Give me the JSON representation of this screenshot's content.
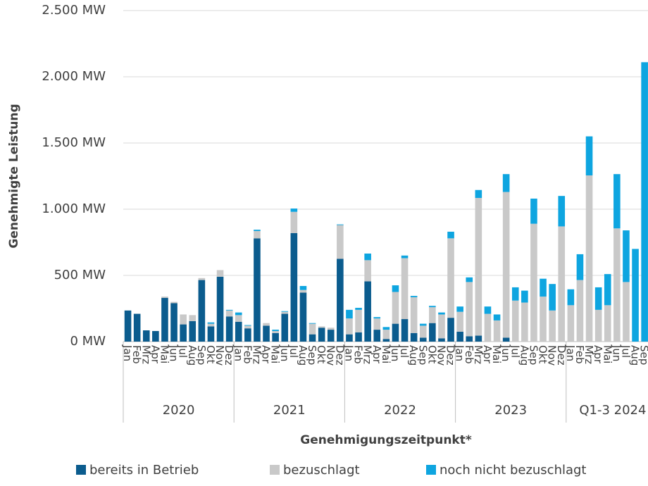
{
  "chart_data": {
    "type": "stacked_bar",
    "y_label": "Genehmigte Leistung",
    "x_label": "Genehmigungszeitpunkt*",
    "groups": [
      {
        "label": "2020",
        "categories": [
          "Jan",
          "Feb",
          "Mrz",
          "Apr",
          "Mai",
          "Jun",
          "Jul",
          "Aug",
          "Sep",
          "Okt",
          "Nov",
          "Dez"
        ]
      },
      {
        "label": "2021",
        "categories": [
          "Jan",
          "Feb",
          "Mrz",
          "Apr",
          "Mai",
          "Jun",
          "Jul",
          "Aug",
          "Sep",
          "Okt",
          "Nov",
          "Dez"
        ]
      },
      {
        "label": "2022",
        "categories": [
          "Jan",
          "Feb",
          "Mrz",
          "Apr",
          "Mai",
          "Jun",
          "Jul",
          "Aug",
          "Sep",
          "Okt",
          "Nov",
          "Dez"
        ]
      },
      {
        "label": "2023",
        "categories": [
          "Jan",
          "Feb",
          "Mrz",
          "Apr",
          "Mai",
          "Jun",
          "Jul",
          "Aug",
          "Sep",
          "Okt",
          "Nov",
          "Dez"
        ]
      },
      {
        "label": "Q1-3 2024",
        "categories": [
          "Jan",
          "Feb",
          "Mrz",
          "Apr",
          "Mai",
          "Jun",
          "Jul",
          "Aug",
          "Sep"
        ]
      }
    ],
    "series": [
      {
        "name": "bereits in Betrieb",
        "color": "#0b5c8e",
        "values": [
          235,
          210,
          85,
          80,
          330,
          290,
          130,
          155,
          465,
          115,
          490,
          190,
          150,
          100,
          780,
          120,
          65,
          210,
          820,
          370,
          55,
          105,
          90,
          625,
          55,
          70,
          455,
          90,
          20,
          135,
          170,
          65,
          30,
          140,
          25,
          180,
          75,
          40,
          45,
          0,
          0,
          30,
          0,
          0,
          0,
          0,
          0,
          0,
          0,
          0,
          0,
          0,
          0,
          0,
          0,
          0,
          0
        ]
      },
      {
        "name": "bezuschlagt",
        "color": "#c9c9c9",
        "values": [
          0,
          0,
          0,
          0,
          10,
          10,
          75,
          45,
          15,
          20,
          50,
          45,
          50,
          20,
          55,
          20,
          15,
          15,
          160,
          20,
          80,
          10,
          15,
          255,
          120,
          170,
          160,
          85,
          70,
          240,
          460,
          270,
          90,
          120,
          180,
          600,
          150,
          410,
          1040,
          210,
          160,
          1100,
          310,
          295,
          890,
          340,
          235,
          870,
          275,
          465,
          1255,
          240,
          275,
          855,
          450,
          0,
          0
        ]
      },
      {
        "name": "noch nicht bezuschlagt",
        "color": "#0ea5e0",
        "values": [
          0,
          0,
          0,
          0,
          0,
          0,
          0,
          0,
          0,
          10,
          0,
          5,
          20,
          5,
          10,
          0,
          10,
          5,
          25,
          30,
          5,
          0,
          0,
          5,
          65,
          15,
          50,
          10,
          20,
          50,
          20,
          10,
          15,
          10,
          15,
          50,
          40,
          35,
          60,
          55,
          45,
          135,
          100,
          90,
          190,
          135,
          200,
          230,
          120,
          195,
          295,
          170,
          235,
          410,
          390,
          700,
          2110
        ]
      }
    ],
    "ylim": [
      0,
      2500
    ],
    "yticks": [
      {
        "value": 0,
        "label": "0 MW"
      },
      {
        "value": 500,
        "label": "500 MW"
      },
      {
        "value": 1000,
        "label": "1.000 MW"
      },
      {
        "value": 1500,
        "label": "1.500 MW"
      },
      {
        "value": 2000,
        "label": "2.000 MW"
      },
      {
        "value": 2500,
        "label": "2.500 MW"
      }
    ],
    "grid": true
  }
}
